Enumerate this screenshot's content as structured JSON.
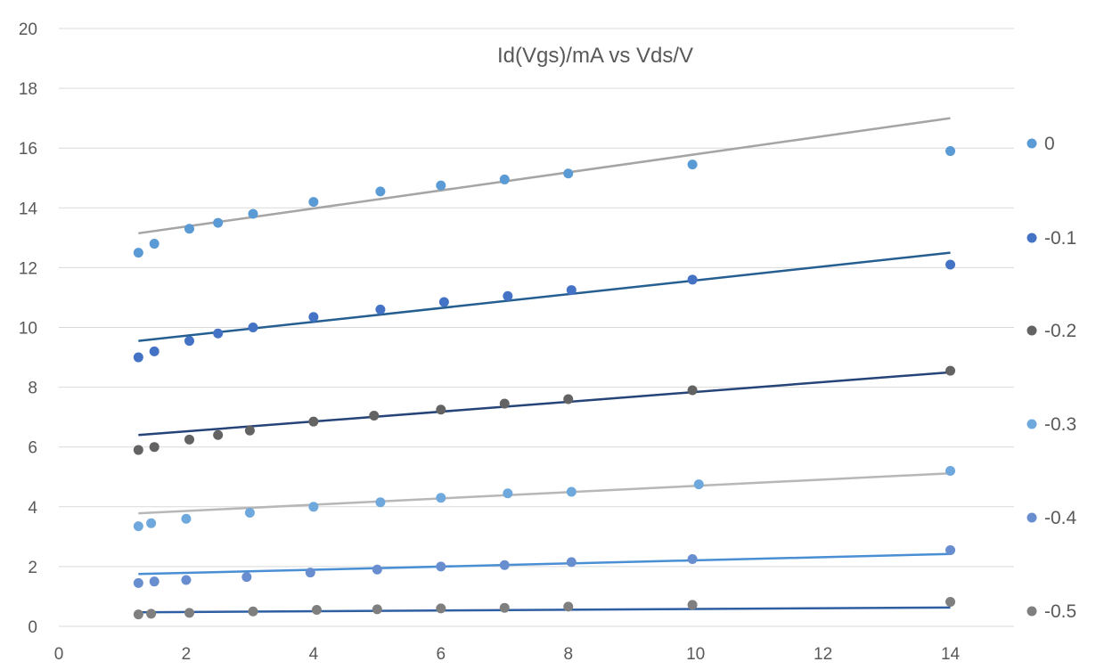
{
  "chart_data": {
    "type": "scatter",
    "title": "Id(Vgs)/mA vs Vds/V",
    "xlim": [
      0,
      15
    ],
    "ylim": [
      0,
      20
    ],
    "xticks": [
      0,
      2,
      4,
      6,
      8,
      10,
      12,
      14
    ],
    "yticks": [
      0,
      2,
      4,
      6,
      8,
      10,
      12,
      14,
      16,
      18,
      20
    ],
    "grid": true,
    "legend_position": "right",
    "series": [
      {
        "name": "0",
        "color": "#5b9bd5",
        "trend_color": "#a5a5a5",
        "x": [
          1.25,
          1.5,
          2.05,
          2.5,
          3.05,
          4.0,
          5.05,
          6.0,
          7.0,
          8.0,
          9.95,
          14.0
        ],
        "y": [
          12.5,
          12.8,
          13.3,
          13.5,
          13.8,
          14.2,
          14.55,
          14.75,
          14.95,
          15.15,
          15.45,
          15.9
        ],
        "trend": [
          [
            1.25,
            13.15
          ],
          [
            14.0,
            17.0
          ]
        ]
      },
      {
        "name": "-0.1",
        "color": "#4472c4",
        "trend_color": "#255e91",
        "x": [
          1.25,
          1.5,
          2.05,
          2.5,
          3.05,
          4.0,
          5.05,
          6.05,
          7.05,
          8.05,
          9.95,
          14.0
        ],
        "y": [
          9.0,
          9.2,
          9.55,
          9.8,
          10.0,
          10.35,
          10.6,
          10.85,
          11.05,
          11.25,
          11.6,
          12.1
        ],
        "trend": [
          [
            1.25,
            9.55
          ],
          [
            14.0,
            12.5
          ]
        ]
      },
      {
        "name": "-0.2",
        "color": "#636363",
        "trend_color": "#264478",
        "x": [
          1.25,
          1.5,
          2.05,
          2.5,
          3.0,
          4.0,
          4.95,
          6.0,
          7.0,
          8.0,
          9.95,
          14.0
        ],
        "y": [
          5.9,
          6.0,
          6.25,
          6.4,
          6.55,
          6.85,
          7.05,
          7.25,
          7.45,
          7.6,
          7.9,
          8.55
        ],
        "trend": [
          [
            1.25,
            6.4
          ],
          [
            14.0,
            8.5
          ]
        ]
      },
      {
        "name": "-0.3",
        "color": "#6fa8dc",
        "trend_color": "#b7b7b7",
        "x": [
          1.25,
          1.45,
          2.0,
          3.0,
          4.0,
          5.05,
          6.0,
          7.05,
          8.05,
          10.05,
          14.0
        ],
        "y": [
          3.35,
          3.45,
          3.6,
          3.8,
          4.0,
          4.15,
          4.3,
          4.45,
          4.5,
          4.75,
          5.2
        ],
        "trend": [
          [
            1.25,
            3.78
          ],
          [
            14.0,
            5.12
          ]
        ]
      },
      {
        "name": "-0.4",
        "color": "#698ed0",
        "trend_color": "#4a8fd4",
        "x": [
          1.25,
          1.5,
          2.0,
          2.95,
          3.95,
          5.0,
          6.0,
          7.0,
          8.05,
          9.95,
          14.0
        ],
        "y": [
          1.45,
          1.5,
          1.55,
          1.65,
          1.8,
          1.9,
          2.0,
          2.05,
          2.15,
          2.25,
          2.55
        ],
        "trend": [
          [
            1.25,
            1.75
          ],
          [
            14.0,
            2.42
          ]
        ]
      },
      {
        "name": "-0.5",
        "color": "#7f7f7f",
        "trend_color": "#2e5fa3",
        "x": [
          1.25,
          1.45,
          2.05,
          3.05,
          4.05,
          5.0,
          6.0,
          7.0,
          8.0,
          9.95,
          14.0
        ],
        "y": [
          0.4,
          0.42,
          0.45,
          0.5,
          0.55,
          0.57,
          0.6,
          0.62,
          0.66,
          0.72,
          0.82
        ],
        "trend": [
          [
            1.25,
            0.47
          ],
          [
            14.0,
            0.63
          ]
        ]
      }
    ]
  }
}
